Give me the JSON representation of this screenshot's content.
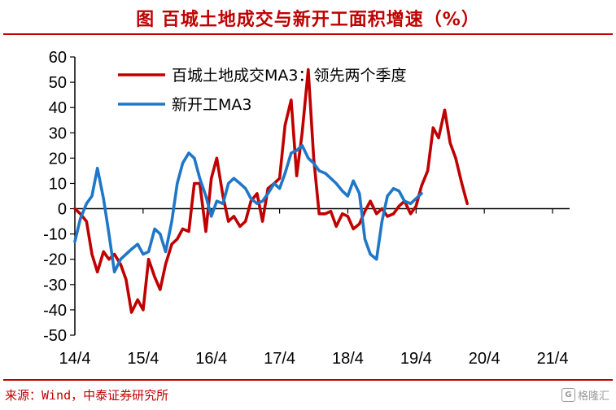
{
  "header": {
    "title": "图  百城土地成交与新开工面积增速（%）"
  },
  "footer": {
    "source": "来源：Wind，中泰证券研究所",
    "watermark": "格隆汇"
  },
  "colors": {
    "accent": "#c00000",
    "series_red": "#c00000",
    "series_blue": "#1f77c8"
  },
  "chart_data": {
    "type": "line",
    "title": "",
    "xlabel": "",
    "ylabel": "",
    "ylim": [
      -50,
      60
    ],
    "yticks": [
      "60",
      "50",
      "40",
      "30",
      "20",
      "10",
      "0",
      "-10",
      "-20",
      "-30",
      "-40",
      "-50"
    ],
    "xticks": [
      "14/4",
      "15/4",
      "16/4",
      "17/4",
      "18/4",
      "19/4",
      "20/4",
      "21/4"
    ],
    "xlim": [
      2014.0,
      2021.25
    ],
    "grid": false,
    "legend_position": "top-center",
    "series": [
      {
        "name": "百城土地成交MA3：领先两个季度",
        "color": "#c00000",
        "points": [
          [
            2014.0,
            0
          ],
          [
            2014.08,
            -2
          ],
          [
            2014.17,
            -5
          ],
          [
            2014.25,
            -18
          ],
          [
            2014.33,
            -25
          ],
          [
            2014.42,
            -17
          ],
          [
            2014.5,
            -20
          ],
          [
            2014.58,
            -18
          ],
          [
            2014.67,
            -22
          ],
          [
            2014.75,
            -28
          ],
          [
            2014.83,
            -41
          ],
          [
            2014.92,
            -36
          ],
          [
            2015.0,
            -40
          ],
          [
            2015.08,
            -20
          ],
          [
            2015.17,
            -27
          ],
          [
            2015.25,
            -32
          ],
          [
            2015.33,
            -22
          ],
          [
            2015.42,
            -14
          ],
          [
            2015.5,
            -12
          ],
          [
            2015.58,
            -8
          ],
          [
            2015.67,
            -9
          ],
          [
            2015.75,
            10
          ],
          [
            2015.83,
            10
          ],
          [
            2015.92,
            -9
          ],
          [
            2016.0,
            12
          ],
          [
            2016.08,
            20
          ],
          [
            2016.17,
            5
          ],
          [
            2016.25,
            -5
          ],
          [
            2016.33,
            -3
          ],
          [
            2016.42,
            -7
          ],
          [
            2016.5,
            -5
          ],
          [
            2016.58,
            3
          ],
          [
            2016.67,
            6
          ],
          [
            2016.75,
            -5
          ],
          [
            2016.83,
            8
          ],
          [
            2016.92,
            10
          ],
          [
            2017.0,
            12
          ],
          [
            2017.08,
            33
          ],
          [
            2017.17,
            43
          ],
          [
            2017.25,
            13
          ],
          [
            2017.33,
            30
          ],
          [
            2017.42,
            55
          ],
          [
            2017.5,
            20
          ],
          [
            2017.58,
            -2
          ],
          [
            2017.67,
            -2
          ],
          [
            2017.75,
            -1
          ],
          [
            2017.83,
            -7
          ],
          [
            2017.92,
            -2
          ],
          [
            2018.0,
            -3
          ],
          [
            2018.08,
            -8
          ],
          [
            2018.17,
            -6
          ],
          [
            2018.25,
            -1
          ],
          [
            2018.33,
            3
          ],
          [
            2018.42,
            -2
          ],
          [
            2018.5,
            0
          ],
          [
            2018.58,
            -3
          ],
          [
            2018.67,
            -2
          ],
          [
            2018.75,
            1
          ],
          [
            2018.83,
            3
          ],
          [
            2018.92,
            -2
          ],
          [
            2019.0,
            1
          ],
          [
            2019.08,
            9
          ],
          [
            2019.17,
            15
          ],
          [
            2019.25,
            32
          ],
          [
            2019.33,
            28
          ],
          [
            2019.42,
            39
          ],
          [
            2019.5,
            26
          ],
          [
            2019.58,
            20
          ],
          [
            2019.67,
            10
          ],
          [
            2019.75,
            2
          ]
        ]
      },
      {
        "name": "新开工MA3",
        "color": "#1f77c8",
        "points": [
          [
            2014.0,
            -13
          ],
          [
            2014.08,
            -4
          ],
          [
            2014.17,
            2
          ],
          [
            2014.25,
            5
          ],
          [
            2014.33,
            16
          ],
          [
            2014.42,
            4
          ],
          [
            2014.5,
            -10
          ],
          [
            2014.58,
            -25
          ],
          [
            2014.67,
            -20
          ],
          [
            2014.75,
            -18
          ],
          [
            2014.83,
            -16
          ],
          [
            2014.92,
            -14
          ],
          [
            2015.0,
            -18
          ],
          [
            2015.08,
            -17
          ],
          [
            2015.17,
            -8
          ],
          [
            2015.25,
            -10
          ],
          [
            2015.33,
            -17
          ],
          [
            2015.42,
            -5
          ],
          [
            2015.5,
            10
          ],
          [
            2015.58,
            18
          ],
          [
            2015.67,
            22
          ],
          [
            2015.75,
            20
          ],
          [
            2015.83,
            12
          ],
          [
            2015.92,
            5
          ],
          [
            2016.0,
            -3
          ],
          [
            2016.08,
            3
          ],
          [
            2016.17,
            2
          ],
          [
            2016.25,
            10
          ],
          [
            2016.33,
            12
          ],
          [
            2016.42,
            10
          ],
          [
            2016.5,
            8
          ],
          [
            2016.58,
            4
          ],
          [
            2016.67,
            2
          ],
          [
            2016.75,
            3
          ],
          [
            2016.83,
            6
          ],
          [
            2016.92,
            10
          ],
          [
            2017.0,
            8
          ],
          [
            2017.08,
            14
          ],
          [
            2017.17,
            22
          ],
          [
            2017.25,
            23
          ],
          [
            2017.33,
            25
          ],
          [
            2017.42,
            20
          ],
          [
            2017.5,
            18
          ],
          [
            2017.58,
            15
          ],
          [
            2017.67,
            14
          ],
          [
            2017.75,
            12
          ],
          [
            2017.83,
            10
          ],
          [
            2017.92,
            7
          ],
          [
            2018.0,
            5
          ],
          [
            2018.08,
            11
          ],
          [
            2018.17,
            6
          ],
          [
            2018.25,
            -12
          ],
          [
            2018.33,
            -18
          ],
          [
            2018.42,
            -20
          ],
          [
            2018.5,
            -5
          ],
          [
            2018.58,
            5
          ],
          [
            2018.67,
            8
          ],
          [
            2018.75,
            7
          ],
          [
            2018.83,
            3
          ],
          [
            2018.92,
            2
          ],
          [
            2019.0,
            4
          ],
          [
            2019.08,
            6
          ]
        ]
      }
    ]
  }
}
